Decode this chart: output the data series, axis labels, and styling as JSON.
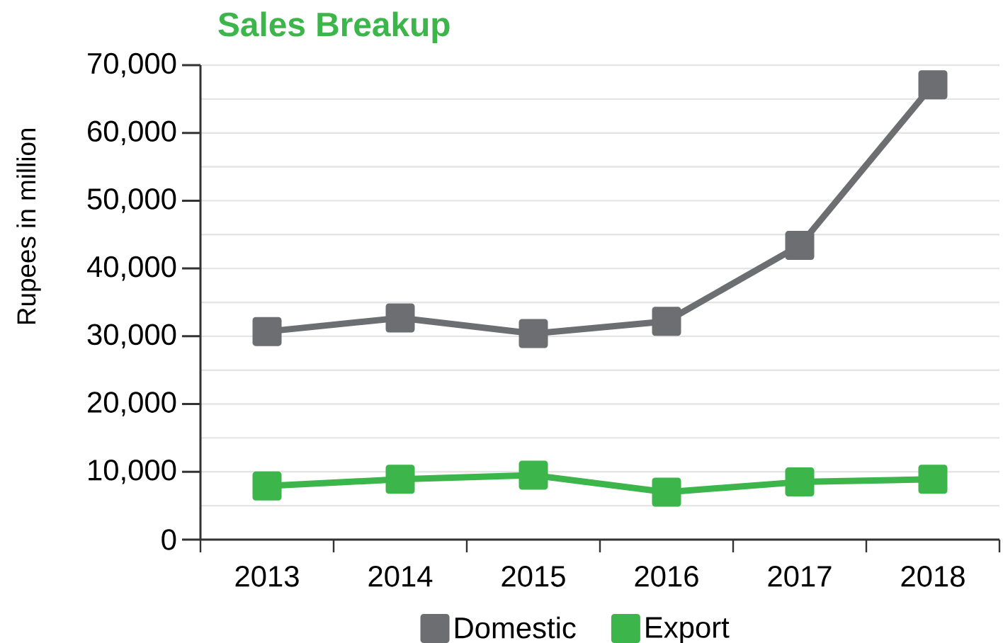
{
  "chart_data": {
    "type": "line",
    "title": "Sales Breakup",
    "ylabel": "Rupees in million",
    "categories": [
      "2013",
      "2014",
      "2015",
      "2016",
      "2017",
      "2018"
    ],
    "series": [
      {
        "name": "Domestic",
        "color": "#6d6e71",
        "values": [
          30700,
          32700,
          30400,
          32200,
          43400,
          67100
        ]
      },
      {
        "name": "Export",
        "color": "#3cb54a",
        "values": [
          7900,
          8900,
          9500,
          7000,
          8500,
          8900
        ]
      }
    ],
    "ylim": [
      0,
      70000
    ],
    "yticks": [
      0,
      {
        "value": 10000,
        "label": "10,000"
      },
      {
        "value": 20000,
        "label": "20,000"
      },
      {
        "value": 30000,
        "label": "30,000"
      },
      {
        "value": 40000,
        "label": "40,000"
      },
      {
        "value": 50000,
        "label": "50,000"
      },
      {
        "value": 60000,
        "label": "60,000"
      },
      {
        "value": 70000,
        "label": "70,000"
      }
    ],
    "grid": "y",
    "legend": "bottom",
    "marker": "square",
    "line_style": "solid"
  }
}
